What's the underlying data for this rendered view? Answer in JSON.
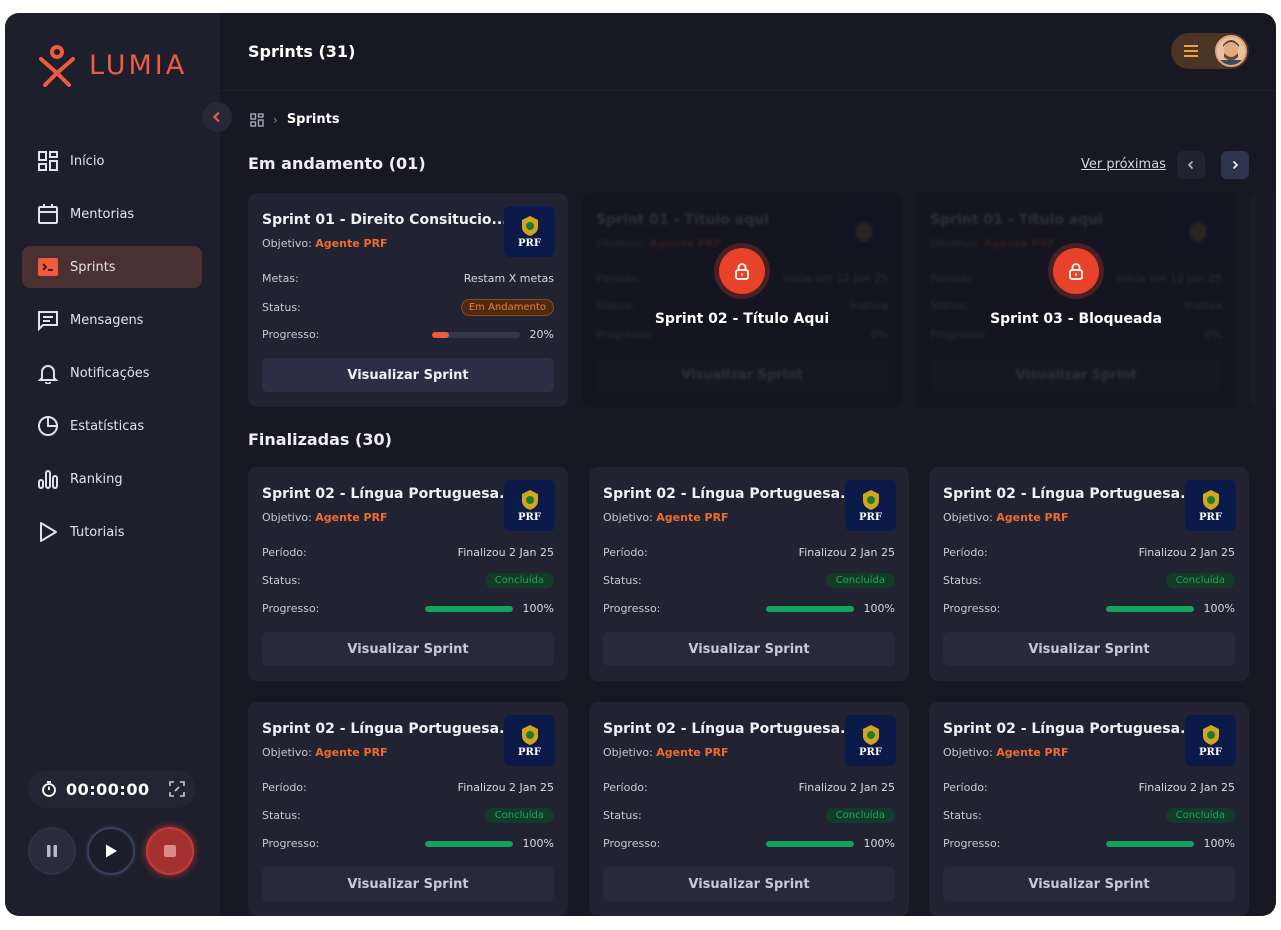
{
  "brand": {
    "name": "LUMIA",
    "accent": "#ef5b3e"
  },
  "sidebar": {
    "items": [
      {
        "label": "Início",
        "icon": "grid-icon"
      },
      {
        "label": "Mentorias",
        "icon": "calendar-icon"
      },
      {
        "label": "Sprints",
        "icon": "sprint-icon",
        "active": true
      },
      {
        "label": "Mensagens",
        "icon": "message-icon"
      },
      {
        "label": "Notificações",
        "icon": "bell-icon"
      },
      {
        "label": "Estatísticas",
        "icon": "pie-icon"
      },
      {
        "label": "Ranking",
        "icon": "bars-icon"
      },
      {
        "label": "Tutoriais",
        "icon": "play-outline-icon"
      }
    ]
  },
  "timer": {
    "value": "00:00:00"
  },
  "header": {
    "title": "Sprints (31)"
  },
  "breadcrumb": {
    "current": "Sprints"
  },
  "in_progress": {
    "title": "Em andamento (01)",
    "see_next": "Ver próximas",
    "active_card": {
      "title": "Sprint 01 - Direito Consitucio...",
      "objective_label": "Objetivo:",
      "objective_value": "Agente PRF",
      "logo_text": "PRF",
      "goals_label": "Metas:",
      "goals_value": "Restam X metas",
      "status_label": "Status:",
      "status_value": "Em Andamento",
      "progress_label": "Progresso:",
      "progress_text": "20%",
      "progress": 0.2,
      "button": "Visualizar Sprint"
    },
    "locked_cards": [
      {
        "label": "Sprint 02 - Título Aqui",
        "blur_title": "Sprint 01 - Título aqui",
        "blur_objective_label": "Objetivo:",
        "blur_objective_value": "Agente PRF",
        "blur_period_label": "Período:",
        "blur_period_value": "Inicia em 12 Jan 25",
        "blur_status_label": "Status:",
        "blur_status_value": "Inativa",
        "blur_progress_label": "Progresso:",
        "blur_progress_text": "0%",
        "button": "Visualizar Sprint"
      },
      {
        "label": "Sprint 03 - Bloqueada",
        "blur_title": "Sprint 01 - Título aqui",
        "blur_objective_label": "Objetivo:",
        "blur_objective_value": "Agente PRF",
        "blur_period_label": "Período:",
        "blur_period_value": "Inicia em 12 Jan 25",
        "blur_status_label": "Status:",
        "blur_status_value": "Inativa",
        "blur_progress_label": "Progresso:",
        "blur_progress_text": "0%",
        "button": "Visualizar Sprint"
      }
    ]
  },
  "finished": {
    "title": "Finalizadas (30)",
    "card": {
      "title": "Sprint 02 - Língua Portuguesa...",
      "objective_label": "Objetivo:",
      "objective_value": "Agente PRF",
      "logo_text": "PRF",
      "period_label": "Período:",
      "period_value": "Finalizou 2 Jan 25",
      "status_label": "Status:",
      "status_value": "Concluída",
      "progress_label": "Progresso:",
      "progress_text": "100%",
      "progress": 1.0,
      "button": "Visualizar Sprint"
    }
  }
}
